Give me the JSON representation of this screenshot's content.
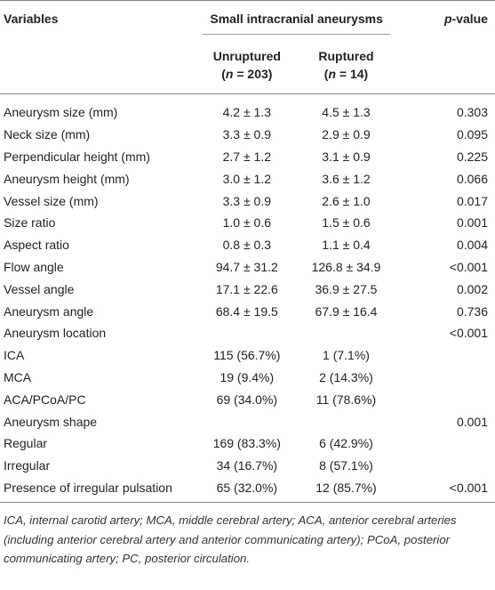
{
  "header": {
    "variables": "Variables",
    "group": "Small intracranial aneurysms",
    "columns": [
      {
        "label": "Unruptured",
        "count": {
          "open": "(",
          "symbol": "n",
          "rest": " = 203)"
        }
      },
      {
        "label": "Ruptured",
        "count": {
          "open": "(",
          "symbol": "n",
          "rest": " = 14)"
        }
      }
    ],
    "pvalue": {
      "symbol": "p",
      "rest": "-value"
    }
  },
  "table": {
    "rows": [
      [
        "Aneurysm size (mm)",
        "4.2 ± 1.3",
        "4.5 ± 1.3",
        "0.303"
      ],
      [
        "Neck size (mm)",
        "3.3 ± 0.9",
        "2.9 ± 0.9",
        "0.095"
      ],
      [
        "Perpendicular height (mm)",
        "2.7 ± 1.2",
        "3.1 ± 0.9",
        "0.225"
      ],
      [
        "Aneurysm height (mm)",
        "3.0 ± 1.2",
        "3.6 ± 1.2",
        "0.066"
      ],
      [
        "Vessel size (mm)",
        "3.3 ± 0.9",
        "2.6 ± 1.0",
        "0.017"
      ],
      [
        "Size ratio",
        "1.0 ± 0.6",
        "1.5 ± 0.6",
        "0.001"
      ],
      [
        "Aspect ratio",
        "0.8 ± 0.3",
        "1.1 ± 0.4",
        "0.004"
      ],
      [
        "Flow angle",
        "94.7 ± 31.2",
        "126.8 ± 34.9",
        "<0.001"
      ],
      [
        "Vessel angle",
        "17.1 ± 22.6",
        "36.9 ± 27.5",
        "0.002"
      ],
      [
        "Aneurysm angle",
        "68.4 ± 19.5",
        "67.9 ± 16.4",
        "0.736"
      ],
      [
        "Aneurysm location",
        null,
        null,
        "<0.001"
      ],
      [
        "ICA",
        "115 (56.7%)",
        "1 (7.1%)",
        null
      ],
      [
        "MCA",
        "19 (9.4%)",
        "2 (14.3%)",
        null
      ],
      [
        "ACA/PCoA/PC",
        "69 (34.0%)",
        "11 (78.6%)",
        null
      ],
      [
        "Aneurysm shape",
        null,
        null,
        "0.001"
      ],
      [
        "Regular",
        "169 (83.3%)",
        "6 (42.9%)",
        null
      ],
      [
        "Irregular",
        "34 (16.7%)",
        "8 (57.1%)",
        null
      ],
      [
        "Presence of irregular pulsation",
        "65 (32.0%)",
        "12 (85.7%)",
        "<0.001"
      ]
    ]
  },
  "footnote": "ICA, internal carotid artery; MCA, middle cerebral artery; ACA, anterior cerebral arteries (including anterior cerebral artery and anterior communicating artery); PCoA, posterior communicating artery; PC, posterior circulation."
}
